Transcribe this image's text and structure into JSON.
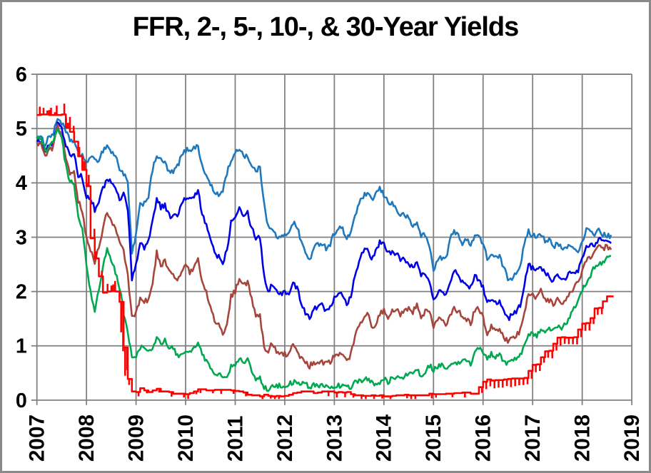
{
  "window": {
    "background": "#ffffff",
    "border_color": "#8a8a8a"
  },
  "chart_data": {
    "type": "line",
    "title": "FFR, 2-, 5-, 10-, & 30-Year Yields",
    "xlabel": "",
    "ylabel": "",
    "grid": true,
    "grid_color": "#808080",
    "legend": "none",
    "text_color": "#000000",
    "x_axis": {
      "range": [
        2007,
        2019
      ],
      "tick_labels": [
        "2007",
        "2008",
        "2009",
        "2010",
        "2011",
        "2012",
        "2013",
        "2014",
        "2015",
        "2016",
        "2017",
        "2018",
        "2019"
      ],
      "label_rotation_deg": 90
    },
    "y_axis": {
      "range": [
        0,
        6
      ],
      "tick_labels": [
        "0",
        "1",
        "2",
        "3",
        "4",
        "5",
        "6"
      ]
    },
    "x_start_year": 2007.0,
    "x_step": "monthly",
    "x_end": "2018-08",
    "series": [
      {
        "name": "30-Year Yield",
        "color": "#1E78BE",
        "style": "line",
        "values": [
          4.85,
          4.82,
          4.72,
          4.87,
          4.9,
          5.2,
          5.11,
          4.93,
          4.79,
          4.77,
          4.52,
          4.53,
          4.33,
          4.52,
          4.39,
          4.44,
          4.6,
          4.69,
          4.57,
          4.5,
          4.27,
          4.17,
          4.0,
          2.69,
          3.05,
          3.59,
          3.64,
          3.76,
          4.23,
          4.52,
          4.41,
          4.37,
          4.19,
          4.19,
          4.31,
          4.49,
          4.6,
          4.62,
          4.64,
          4.69,
          4.29,
          4.13,
          3.99,
          3.8,
          3.77,
          3.87,
          4.19,
          4.42,
          4.52,
          4.65,
          4.51,
          4.5,
          4.29,
          4.23,
          4.27,
          3.65,
          3.18,
          3.13,
          3.02,
          2.98,
          3.03,
          3.11,
          3.28,
          3.18,
          2.93,
          2.7,
          2.59,
          2.77,
          2.88,
          2.9,
          2.8,
          2.88,
          3.08,
          3.17,
          3.16,
          2.93,
          3.11,
          3.4,
          3.61,
          3.76,
          3.79,
          3.68,
          3.8,
          3.89,
          3.77,
          3.66,
          3.62,
          3.52,
          3.39,
          3.42,
          3.33,
          3.2,
          3.26,
          3.04,
          3.04,
          2.83,
          2.42,
          2.57,
          2.63,
          2.59,
          2.96,
          3.11,
          3.07,
          2.86,
          2.95,
          2.89,
          3.03,
          3.03,
          2.86,
          2.62,
          2.68,
          2.62,
          2.63,
          2.45,
          2.23,
          2.26,
          2.35,
          2.5,
          2.86,
          3.11,
          3.02,
          3.03,
          3.08,
          2.94,
          2.96,
          2.8,
          2.88,
          2.8,
          2.78,
          2.88,
          2.77,
          2.77,
          2.88,
          3.13,
          3.09,
          3.07,
          3.13,
          3.05,
          3.01,
          3.04
        ]
      },
      {
        "name": "10-Year Yield",
        "color": "#0000E6",
        "style": "line",
        "values": [
          4.76,
          4.72,
          4.56,
          4.69,
          4.75,
          5.1,
          5.0,
          4.67,
          4.52,
          4.53,
          4.15,
          4.1,
          3.74,
          3.74,
          3.51,
          3.68,
          3.88,
          4.1,
          4.01,
          3.89,
          3.69,
          3.81,
          3.53,
          2.25,
          2.52,
          2.87,
          2.82,
          2.93,
          3.29,
          3.72,
          3.56,
          3.59,
          3.4,
          3.39,
          3.4,
          3.59,
          3.73,
          3.69,
          3.73,
          3.85,
          3.42,
          3.2,
          3.01,
          2.7,
          2.65,
          2.54,
          2.76,
          3.29,
          3.39,
          3.58,
          3.41,
          3.46,
          3.17,
          3.0,
          3.0,
          2.3,
          1.98,
          2.15,
          2.01,
          1.98,
          1.97,
          1.97,
          2.17,
          2.05,
          1.8,
          1.62,
          1.53,
          1.68,
          1.72,
          1.75,
          1.65,
          1.72,
          1.91,
          1.98,
          1.96,
          1.76,
          1.93,
          2.3,
          2.58,
          2.74,
          2.81,
          2.62,
          2.72,
          2.9,
          2.86,
          2.71,
          2.72,
          2.71,
          2.56,
          2.6,
          2.54,
          2.42,
          2.53,
          2.3,
          2.33,
          2.21,
          1.88,
          1.98,
          2.04,
          1.94,
          2.2,
          2.36,
          2.32,
          2.17,
          2.17,
          2.07,
          2.26,
          2.24,
          2.09,
          1.78,
          1.89,
          1.81,
          1.81,
          1.64,
          1.5,
          1.56,
          1.63,
          1.76,
          2.14,
          2.49,
          2.43,
          2.42,
          2.48,
          2.3,
          2.3,
          2.19,
          2.32,
          2.21,
          2.2,
          2.36,
          2.35,
          2.4,
          2.58,
          2.86,
          2.84,
          2.87,
          2.98,
          2.91,
          2.89,
          2.89
        ]
      },
      {
        "name": "5-Year Yield",
        "color": "#A6453C",
        "style": "line",
        "values": [
          4.75,
          4.71,
          4.48,
          4.59,
          4.67,
          5.03,
          4.88,
          4.43,
          4.2,
          4.2,
          3.67,
          3.49,
          2.98,
          2.78,
          2.48,
          2.84,
          3.15,
          3.49,
          3.3,
          3.14,
          2.88,
          2.73,
          2.29,
          1.52,
          1.6,
          1.87,
          1.82,
          1.86,
          2.13,
          2.71,
          2.46,
          2.57,
          2.37,
          2.33,
          2.23,
          2.34,
          2.48,
          2.36,
          2.43,
          2.58,
          2.18,
          1.98,
          1.76,
          1.47,
          1.41,
          1.18,
          1.35,
          1.93,
          1.99,
          2.26,
          2.11,
          2.17,
          1.84,
          1.58,
          1.54,
          0.98,
          0.9,
          1.06,
          0.91,
          0.89,
          0.84,
          0.83,
          1.02,
          0.89,
          0.76,
          0.71,
          0.62,
          0.71,
          0.67,
          0.71,
          0.67,
          0.7,
          0.81,
          0.85,
          0.82,
          0.71,
          0.84,
          1.2,
          1.4,
          1.52,
          1.6,
          1.37,
          1.37,
          1.58,
          1.65,
          1.52,
          1.64,
          1.7,
          1.59,
          1.68,
          1.7,
          1.63,
          1.77,
          1.55,
          1.62,
          1.64,
          1.37,
          1.47,
          1.52,
          1.35,
          1.54,
          1.68,
          1.63,
          1.54,
          1.49,
          1.39,
          1.67,
          1.7,
          1.52,
          1.22,
          1.38,
          1.27,
          1.3,
          1.17,
          1.07,
          1.13,
          1.18,
          1.27,
          1.6,
          1.96,
          1.92,
          1.9,
          2.01,
          1.84,
          1.84,
          1.77,
          1.87,
          1.78,
          1.8,
          1.98,
          2.05,
          2.18,
          2.38,
          2.6,
          2.63,
          2.77,
          2.82,
          2.78,
          2.85,
          2.77
        ]
      },
      {
        "name": "2-Year Yield",
        "color": "#00A84F",
        "style": "line",
        "values": [
          4.81,
          4.85,
          4.57,
          4.67,
          4.77,
          4.98,
          4.82,
          4.31,
          4.01,
          3.97,
          3.34,
          3.12,
          2.48,
          1.97,
          1.62,
          2.05,
          2.45,
          2.77,
          2.57,
          2.36,
          2.08,
          1.61,
          1.21,
          0.82,
          0.81,
          0.98,
          0.93,
          0.93,
          0.93,
          1.18,
          1.02,
          1.12,
          0.96,
          0.95,
          0.8,
          0.87,
          0.93,
          0.86,
          0.96,
          1.06,
          0.83,
          0.72,
          0.62,
          0.52,
          0.48,
          0.38,
          0.45,
          0.62,
          0.61,
          0.77,
          0.7,
          0.73,
          0.56,
          0.41,
          0.41,
          0.23,
          0.21,
          0.28,
          0.25,
          0.26,
          0.24,
          0.28,
          0.34,
          0.29,
          0.29,
          0.29,
          0.25,
          0.27,
          0.26,
          0.28,
          0.27,
          0.26,
          0.27,
          0.27,
          0.26,
          0.23,
          0.25,
          0.33,
          0.34,
          0.36,
          0.4,
          0.34,
          0.3,
          0.34,
          0.39,
          0.33,
          0.4,
          0.42,
          0.39,
          0.45,
          0.51,
          0.47,
          0.57,
          0.45,
          0.53,
          0.64,
          0.55,
          0.62,
          0.64,
          0.54,
          0.61,
          0.69,
          0.67,
          0.7,
          0.71,
          0.64,
          0.88,
          0.98,
          0.9,
          0.73,
          0.88,
          0.77,
          0.82,
          0.73,
          0.67,
          0.74,
          0.77,
          0.84,
          0.98,
          1.2,
          1.21,
          1.2,
          1.31,
          1.24,
          1.3,
          1.34,
          1.37,
          1.34,
          1.38,
          1.55,
          1.7,
          1.84,
          2.03,
          2.18,
          2.28,
          2.46,
          2.51,
          2.53,
          2.6,
          2.65
        ]
      },
      {
        "name": "FFR",
        "color": "#FF0000",
        "style": "step",
        "values": [
          5.25,
          5.26,
          5.26,
          5.25,
          5.25,
          5.25,
          5.26,
          5.02,
          4.94,
          4.76,
          4.49,
          4.24,
          3.94,
          2.98,
          2.61,
          2.28,
          1.98,
          2.0,
          2.01,
          2.0,
          1.81,
          0.97,
          0.39,
          0.16,
          0.15,
          0.22,
          0.18,
          0.15,
          0.18,
          0.21,
          0.16,
          0.16,
          0.15,
          0.12,
          0.12,
          0.12,
          0.11,
          0.13,
          0.16,
          0.2,
          0.2,
          0.18,
          0.18,
          0.19,
          0.19,
          0.19,
          0.19,
          0.18,
          0.17,
          0.16,
          0.14,
          0.1,
          0.09,
          0.09,
          0.07,
          0.1,
          0.08,
          0.07,
          0.08,
          0.07,
          0.08,
          0.1,
          0.13,
          0.14,
          0.16,
          0.16,
          0.16,
          0.13,
          0.14,
          0.16,
          0.16,
          0.16,
          0.14,
          0.15,
          0.14,
          0.15,
          0.11,
          0.09,
          0.09,
          0.08,
          0.08,
          0.09,
          0.08,
          0.09,
          0.07,
          0.07,
          0.08,
          0.09,
          0.09,
          0.1,
          0.09,
          0.09,
          0.09,
          0.09,
          0.09,
          0.12,
          0.11,
          0.11,
          0.11,
          0.12,
          0.12,
          0.13,
          0.13,
          0.14,
          0.14,
          0.12,
          0.12,
          0.24,
          0.34,
          0.38,
          0.36,
          0.37,
          0.37,
          0.38,
          0.39,
          0.4,
          0.4,
          0.4,
          0.41,
          0.54,
          0.65,
          0.66,
          0.79,
          0.9,
          0.91,
          1.04,
          1.15,
          1.16,
          1.15,
          1.15,
          1.16,
          1.3,
          1.41,
          1.42,
          1.51,
          1.69,
          1.7,
          1.82,
          1.91,
          1.91
        ]
      }
    ]
  }
}
